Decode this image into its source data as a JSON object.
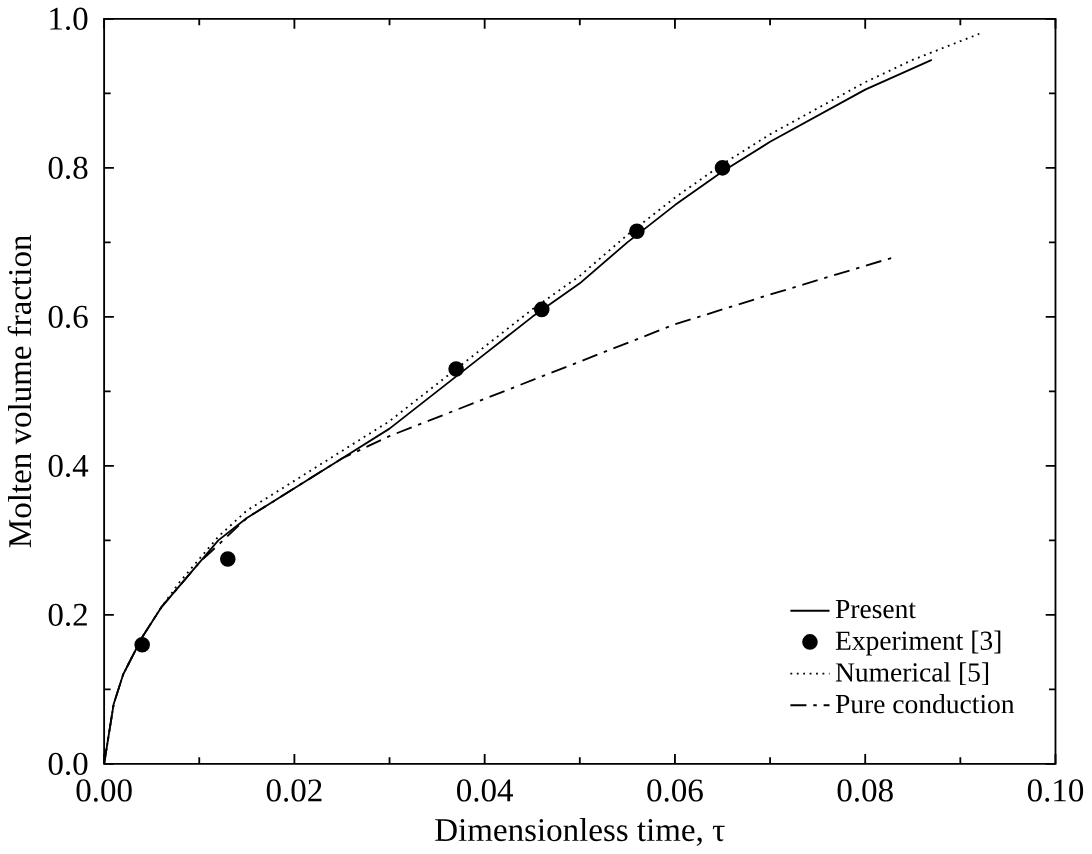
{
  "chart_data": {
    "type": "line",
    "xlabel": "Dimensionless time, τ",
    "ylabel": "Molten volume fraction",
    "xlim": [
      0,
      0.1
    ],
    "ylim": [
      0,
      1
    ],
    "xticks": [
      {
        "value": 0,
        "label": "0.00"
      },
      {
        "value": 0.02,
        "label": "0.02"
      },
      {
        "value": 0.04,
        "label": "0.04"
      },
      {
        "value": 0.06,
        "label": "0.06"
      },
      {
        "value": 0.08,
        "label": "0.08"
      },
      {
        "value": 0.1,
        "label": "0.10"
      }
    ],
    "yticks": [
      {
        "value": 0,
        "label": "0.0"
      },
      {
        "value": 0.2,
        "label": "0.2"
      },
      {
        "value": 0.4,
        "label": "0.4"
      },
      {
        "value": 0.6,
        "label": "0.6"
      },
      {
        "value": 0.8,
        "label": "0.8"
      },
      {
        "value": 1,
        "label": "1.0"
      }
    ],
    "legend": "bottom right",
    "grid": false,
    "series": [
      {
        "name": "Present",
        "color": "#000000",
        "line_style": "solid",
        "x": [
          0,
          0.001,
          0.002,
          0.004,
          0.006,
          0.008,
          0.01,
          0.012,
          0.015,
          0.02,
          0.025,
          0.03,
          0.035,
          0.04,
          0.045,
          0.05,
          0.055,
          0.06,
          0.065,
          0.07,
          0.075,
          0.08,
          0.087
        ],
        "values": [
          0,
          0.08,
          0.12,
          0.17,
          0.21,
          0.24,
          0.27,
          0.3,
          0.33,
          0.37,
          0.41,
          0.45,
          0.5,
          0.55,
          0.6,
          0.645,
          0.7,
          0.75,
          0.795,
          0.835,
          0.87,
          0.905,
          0.945
        ]
      },
      {
        "name": "Experiment [3]",
        "type": "scatter",
        "marker": "circle",
        "color": "#000000",
        "x": [
          0.004,
          0.013,
          0.037,
          0.046,
          0.056,
          0.065
        ],
        "values": [
          0.16,
          0.275,
          0.53,
          0.61,
          0.715,
          0.8
        ]
      },
      {
        "name": "Numerical [5]",
        "color": "#000000",
        "line_style": "dotted",
        "x": [
          0,
          0.001,
          0.002,
          0.004,
          0.006,
          0.008,
          0.01,
          0.012,
          0.015,
          0.02,
          0.025,
          0.03,
          0.035,
          0.04,
          0.045,
          0.05,
          0.055,
          0.06,
          0.065,
          0.07,
          0.075,
          0.08,
          0.085,
          0.092
        ],
        "values": [
          0,
          0.08,
          0.12,
          0.17,
          0.21,
          0.245,
          0.275,
          0.305,
          0.34,
          0.38,
          0.42,
          0.46,
          0.51,
          0.56,
          0.61,
          0.655,
          0.71,
          0.76,
          0.805,
          0.845,
          0.88,
          0.915,
          0.945,
          0.98
        ]
      },
      {
        "name": "Pure conduction",
        "color": "#000000",
        "line_style": "dashdot",
        "x": [
          0,
          0.001,
          0.002,
          0.004,
          0.006,
          0.008,
          0.01,
          0.015,
          0.02,
          0.025,
          0.03,
          0.04,
          0.05,
          0.06,
          0.07,
          0.083
        ],
        "values": [
          0,
          0.08,
          0.12,
          0.17,
          0.21,
          0.24,
          0.27,
          0.33,
          0.37,
          0.41,
          0.44,
          0.49,
          0.54,
          0.59,
          0.63,
          0.68
        ]
      }
    ]
  }
}
